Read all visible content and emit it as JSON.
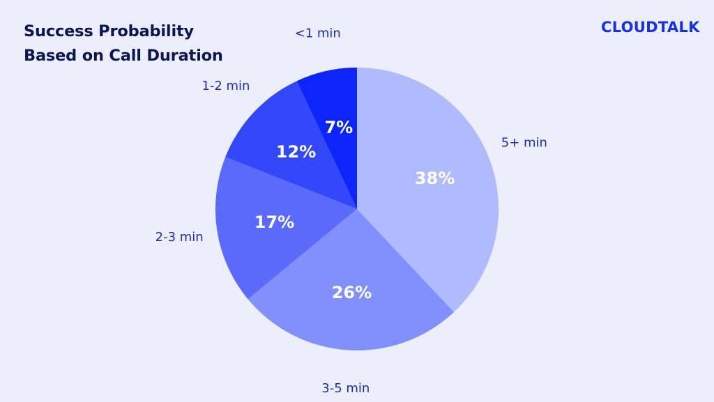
{
  "header": {
    "title_line1": "Success Probability",
    "title_line2": "Based on Call Duration",
    "logo": "CLOUDTALK"
  },
  "colors": {
    "background": "#eceefb",
    "title": "#0b1553",
    "logo": "#1530e6",
    "category_label": "#1b2fb3"
  },
  "chart_data": {
    "type": "pie",
    "title": "Success Probability Based on Call Duration",
    "start": "12 o'clock",
    "direction": "clockwise",
    "slices": [
      {
        "label": "5+ min",
        "value": 38,
        "value_label": "38%",
        "color": "#b0bbfd"
      },
      {
        "label": "3-5 min",
        "value": 26,
        "value_label": "26%",
        "color": "#8190fd"
      },
      {
        "label": "2-3 min",
        "value": 17,
        "value_label": "17%",
        "color": "#5a6bfc"
      },
      {
        "label": "1-2 min",
        "value": 12,
        "value_label": "12%",
        "color": "#3347fb"
      },
      {
        "label": "<1 min",
        "value": 7,
        "value_label": "7%",
        "color": "#0d25fa"
      }
    ]
  }
}
